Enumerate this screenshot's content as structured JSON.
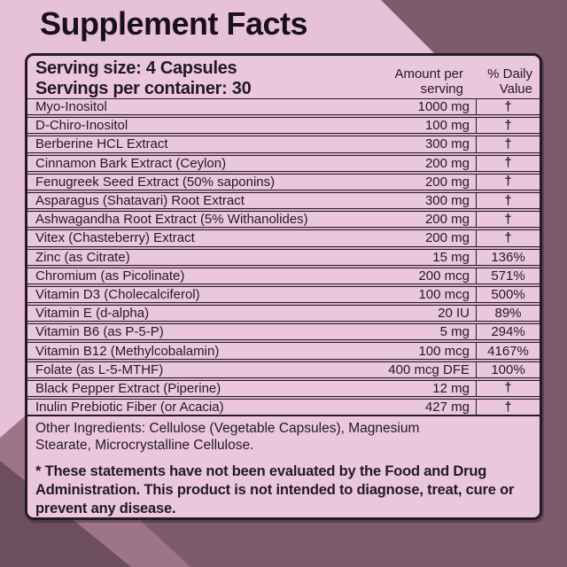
{
  "page": {
    "title": "Supplement Facts"
  },
  "panel": {
    "serving_size": "Serving size: 4 Capsules",
    "servings_per_container": "Servings per container: 30",
    "columns": {
      "amount_line1": "Amount per",
      "amount_line2": "serving",
      "dv_line1": "% Daily",
      "dv_line2": "Value"
    },
    "rows": [
      {
        "name": "Myo-Inositol",
        "amount": "1000 mg",
        "daily_value": "†"
      },
      {
        "name": "D-Chiro-Inositol",
        "amount": "100 mg",
        "daily_value": "†"
      },
      {
        "name": "Berberine HCL Extract",
        "amount": "300 mg",
        "daily_value": "†"
      },
      {
        "name": "Cinnamon Bark Extract (Ceylon)",
        "amount": "200 mg",
        "daily_value": "†"
      },
      {
        "name": "Fenugreek Seed Extract (50% saponins)",
        "amount": "200 mg",
        "daily_value": "†"
      },
      {
        "name": "Asparagus (Shatavari) Root Extract",
        "amount": "300 mg",
        "daily_value": "†"
      },
      {
        "name": "Ashwagandha Root Extract (5% Withanolides)",
        "amount": "200 mg",
        "daily_value": "†"
      },
      {
        "name": "Vitex (Chasteberry) Extract",
        "amount": "200 mg",
        "daily_value": "†"
      },
      {
        "name": "Zinc (as Citrate)",
        "amount": "15 mg",
        "daily_value": "136%"
      },
      {
        "name": "Chromium (as Picolinate)",
        "amount": "200 mcg",
        "daily_value": "571%"
      },
      {
        "name": "Vitamin D3 (Cholecalciferol)",
        "amount": "100 mcg",
        "daily_value": "500%"
      },
      {
        "name": "Vitamin E (d-alpha)",
        "amount": "20 IU",
        "daily_value": "89%"
      },
      {
        "name": "Vitamin B6 (as P-5-P)",
        "amount": "5 mg",
        "daily_value": "294%"
      },
      {
        "name": "Vitamin B12 (Methylcobalamin)",
        "amount": "100 mcg",
        "daily_value": "4167%"
      },
      {
        "name": "Folate (as L-5-MTHF)",
        "amount": "400 mcg DFE",
        "daily_value": "100%"
      },
      {
        "name": "Black Pepper Extract (Piperine)",
        "amount": "12 mg",
        "daily_value": "†"
      },
      {
        "name": "Inulin Prebiotic Fiber (or Acacia)",
        "amount": "427 mg",
        "daily_value": "†"
      }
    ],
    "other_ingredients": "Other Ingredients: Cellulose (Vegetable Capsules), Magnesium Stearate, Microcrystalline Cellulose.",
    "disclaimer": "* These statements have not been evaluated by the Food and Drug Administration. This product is not intended to diagnose, treat, cure or prevent any disease."
  },
  "colors": {
    "pink_background": "#e6c1d7",
    "row_pink": "#ebc7dc",
    "row_gap_pink": "#d8b2c9",
    "ink": "#231828",
    "dark_mauve": "#7e5b6b",
    "darker_mauve": "#6d4e5e",
    "light_mauve": "#9e7587"
  }
}
